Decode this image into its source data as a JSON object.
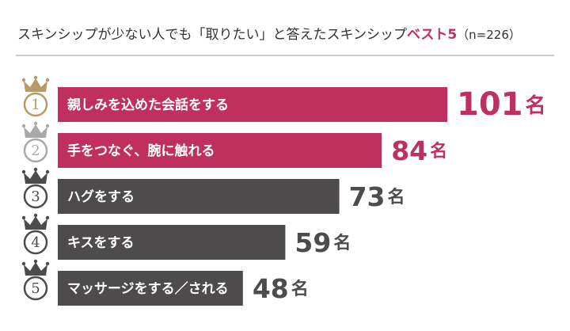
{
  "chart_data": {
    "type": "bar",
    "title": "スキンシップが少ない人でも「取りたい」と答えたスキンシップ",
    "title_highlight": "ベスト5",
    "title_note": "（n=226）",
    "ranks": [
      1,
      2,
      3,
      4,
      5
    ],
    "categories": [
      "親しみを込めた会話をする",
      "手をつなぐ、腕に触れる",
      "ハグをする",
      "キスをする",
      "マッサージをする／される"
    ],
    "values": [
      101,
      84,
      73,
      59,
      48
    ],
    "unit": "名",
    "colors": [
      "#c0305f",
      "#c0305f",
      "#4d4b4c",
      "#4d4b4c",
      "#4d4b4c"
    ],
    "badge_colors": [
      "#b79a64",
      "#a9a9a9",
      "#4d4b4c",
      "#4d4b4c",
      "#4d4b4c"
    ],
    "highlight_color": "#c0305f"
  }
}
